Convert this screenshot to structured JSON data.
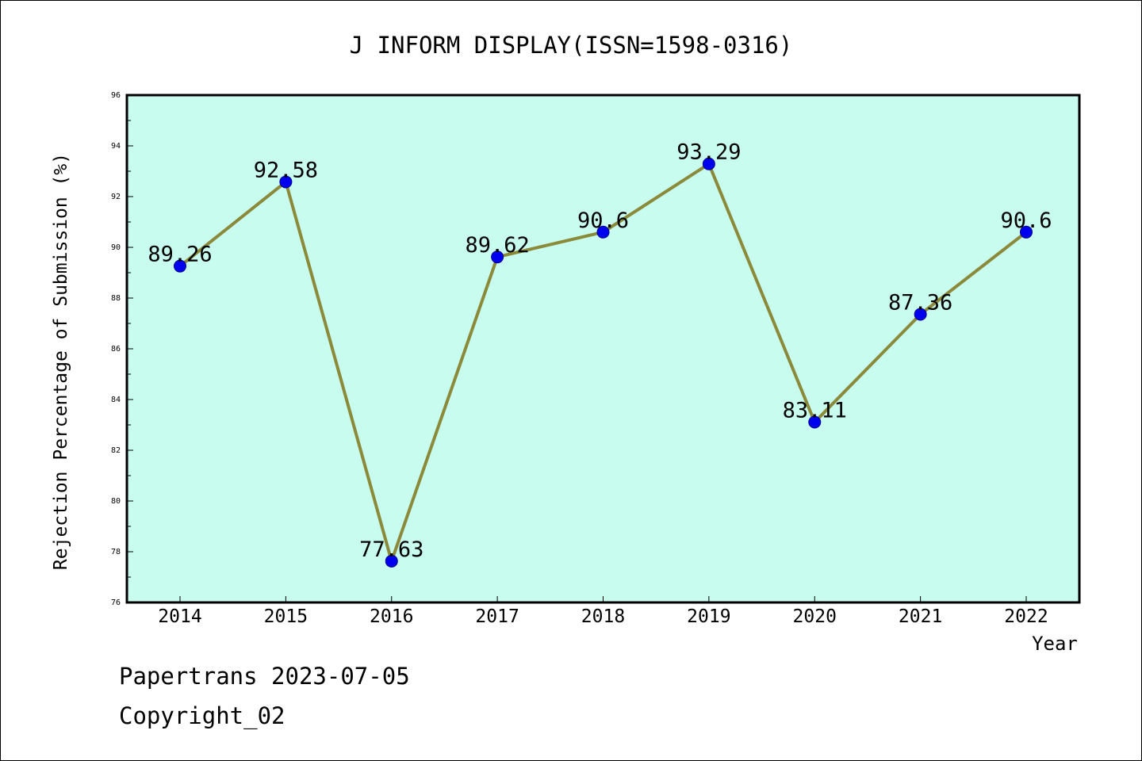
{
  "chart_data": {
    "type": "line",
    "title": "J INFORM DISPLAY(ISSN=1598-0316)",
    "xlabel": "Year",
    "ylabel": "Rejection Percentage of Submission (%)",
    "categories": [
      "2014",
      "2015",
      "2016",
      "2017",
      "2018",
      "2019",
      "2020",
      "2021",
      "2022"
    ],
    "values": [
      89.26,
      92.58,
      77.63,
      89.62,
      90.6,
      93.29,
      83.11,
      87.36,
      90.6
    ],
    "data_labels": [
      "89.26",
      "92.58",
      "77.63",
      "89.62",
      "90.6",
      "93.29",
      "83.11",
      "87.36",
      "90.6"
    ],
    "ylim": [
      76,
      96
    ],
    "yticks": [
      76,
      78,
      80,
      82,
      84,
      86,
      88,
      90,
      92,
      94,
      96
    ],
    "grid": false,
    "colors": {
      "plot_background": "#c8fcee",
      "line": "#8b8a3b",
      "marker_fill": "#0000ee",
      "marker_stroke": "#00008b"
    }
  },
  "footer": {
    "line1": "Papertrans 2023-07-05",
    "line2": "Copyright_02"
  }
}
